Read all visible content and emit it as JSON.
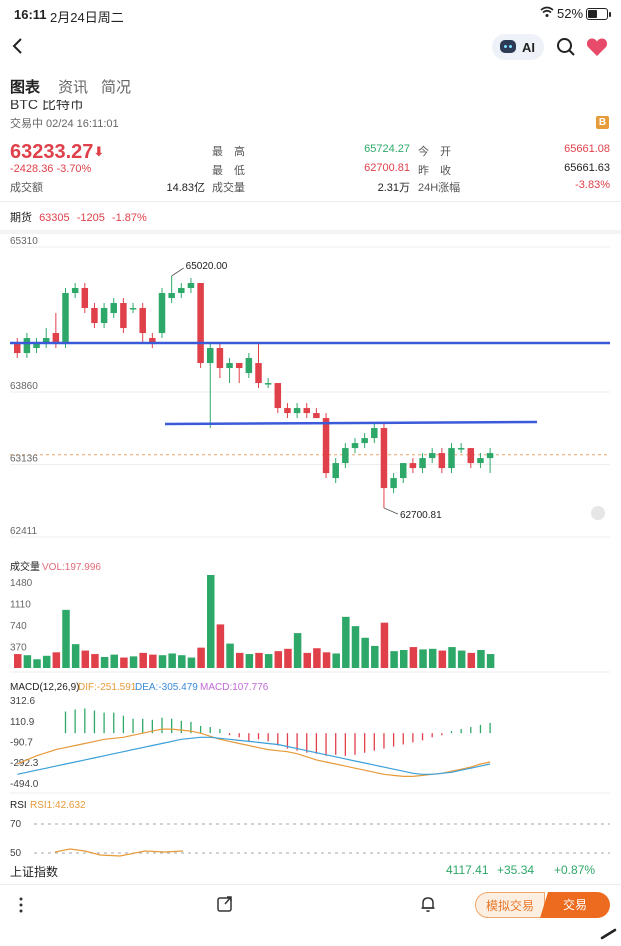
{
  "status_bar": {
    "time": "16:11",
    "date": "2月24日周二",
    "battery": "52%"
  },
  "header": {
    "ai_label": "AI"
  },
  "tabs": [
    {
      "label": "图表",
      "active": true
    },
    {
      "label": "资讯",
      "active": false
    },
    {
      "label": "简况",
      "active": false
    }
  ],
  "instrument": {
    "title": "BTC 比特币",
    "trade_status": "交易中 02/24 16:11:01",
    "price": "63233.27",
    "change": "-2428.36 -3.70%",
    "badge": "B"
  },
  "stats": {
    "high_label": "最　高",
    "high": "65724.27",
    "open_label": "今　开",
    "open": "65661.08",
    "low_label": "最　低",
    "low": "62700.81",
    "prev_label": "昨　收",
    "prev": "65661.63",
    "turnover_label": "成交额",
    "turnover": "14.83亿",
    "volume_label": "成交量",
    "volume": "2.31万",
    "change24_label": "24H涨幅",
    "change24": "-3.83%"
  },
  "futures": {
    "label": "期货",
    "price": "63305",
    "change": "-1205",
    "pct": "-1.87%"
  },
  "chart_data": {
    "type": "candlestick",
    "price_axis": {
      "ticks": [
        "65310",
        "63860",
        "63136",
        "62411"
      ]
    },
    "annotations": {
      "high": "65020.00",
      "low": "62700.81"
    },
    "candles": [
      {
        "o": 64350,
        "c": 64250,
        "h": 64400,
        "l": 64200
      },
      {
        "o": 64250,
        "c": 64400,
        "h": 64450,
        "l": 64200
      },
      {
        "o": 64300,
        "c": 64350,
        "h": 64400,
        "l": 64250
      },
      {
        "o": 64350,
        "c": 64400,
        "h": 64500,
        "l": 64300
      },
      {
        "o": 64450,
        "c": 64350,
        "h": 64650,
        "l": 64300
      },
      {
        "o": 64350,
        "c": 64850,
        "h": 64900,
        "l": 64300
      },
      {
        "o": 64850,
        "c": 64900,
        "h": 64950,
        "l": 64800
      },
      {
        "o": 64900,
        "c": 64700,
        "h": 64950,
        "l": 64650
      },
      {
        "o": 64700,
        "c": 64550,
        "h": 64750,
        "l": 64500
      },
      {
        "o": 64550,
        "c": 64700,
        "h": 64750,
        "l": 64500
      },
      {
        "o": 64650,
        "c": 64750,
        "h": 64800,
        "l": 64600
      },
      {
        "o": 64750,
        "c": 64500,
        "h": 64800,
        "l": 64450
      },
      {
        "o": 64700,
        "c": 64700,
        "h": 64750,
        "l": 64650
      },
      {
        "o": 64700,
        "c": 64450,
        "h": 64750,
        "l": 64350
      },
      {
        "o": 64400,
        "c": 64350,
        "h": 64450,
        "l": 64300
      },
      {
        "o": 64450,
        "c": 64850,
        "h": 64900,
        "l": 64400
      },
      {
        "o": 64800,
        "c": 64850,
        "h": 65020,
        "l": 64750
      },
      {
        "o": 64850,
        "c": 64900,
        "h": 64950,
        "l": 64800
      },
      {
        "o": 64900,
        "c": 64950,
        "h": 65000,
        "l": 64850
      },
      {
        "o": 64950,
        "c": 64150,
        "h": 64950,
        "l": 64100
      },
      {
        "o": 64150,
        "c": 64300,
        "h": 64350,
        "l": 63500
      },
      {
        "o": 64300,
        "c": 64100,
        "h": 64350,
        "l": 64000
      },
      {
        "o": 64100,
        "c": 64150,
        "h": 64200,
        "l": 63950
      },
      {
        "o": 64150,
        "c": 64100,
        "h": 64150,
        "l": 63950
      },
      {
        "o": 64050,
        "c": 64200,
        "h": 64250,
        "l": 64000
      },
      {
        "o": 64150,
        "c": 63950,
        "h": 64350,
        "l": 63900
      },
      {
        "o": 63950,
        "c": 63950,
        "h": 64000,
        "l": 63900
      },
      {
        "o": 63950,
        "c": 63700,
        "h": 63950,
        "l": 63650
      },
      {
        "o": 63700,
        "c": 63650,
        "h": 63750,
        "l": 63600
      },
      {
        "o": 63650,
        "c": 63700,
        "h": 63750,
        "l": 63600
      },
      {
        "o": 63700,
        "c": 63650,
        "h": 63750,
        "l": 63600
      },
      {
        "o": 63650,
        "c": 63600,
        "h": 63700,
        "l": 63600
      },
      {
        "o": 63600,
        "c": 63050,
        "h": 63650,
        "l": 63000
      },
      {
        "o": 63000,
        "c": 63150,
        "h": 63200,
        "l": 62950
      },
      {
        "o": 63150,
        "c": 63300,
        "h": 63350,
        "l": 63100
      },
      {
        "o": 63300,
        "c": 63350,
        "h": 63400,
        "l": 63250
      },
      {
        "o": 63350,
        "c": 63400,
        "h": 63450,
        "l": 63300
      },
      {
        "o": 63400,
        "c": 63500,
        "h": 63550,
        "l": 63350
      },
      {
        "o": 63500,
        "c": 62900,
        "h": 63550,
        "l": 62700
      },
      {
        "o": 62900,
        "c": 63000,
        "h": 63050,
        "l": 62850
      },
      {
        "o": 63000,
        "c": 63150,
        "h": 63150,
        "l": 62950
      },
      {
        "o": 63150,
        "c": 63100,
        "h": 63200,
        "l": 63050
      },
      {
        "o": 63100,
        "c": 63200,
        "h": 63250,
        "l": 63050
      },
      {
        "o": 63200,
        "c": 63250,
        "h": 63300,
        "l": 63150
      },
      {
        "o": 63250,
        "c": 63100,
        "h": 63300,
        "l": 63050
      },
      {
        "o": 63100,
        "c": 63300,
        "h": 63350,
        "l": 63050
      },
      {
        "o": 63300,
        "c": 63300,
        "h": 63350,
        "l": 63250
      },
      {
        "o": 63300,
        "c": 63150,
        "h": 63300,
        "l": 63100
      },
      {
        "o": 63150,
        "c": 63200,
        "h": 63250,
        "l": 63100
      },
      {
        "o": 63200,
        "c": 63250,
        "h": 63300,
        "l": 63050
      }
    ],
    "volume": {
      "label": "成交量",
      "vol_label": "VOL:197.996",
      "ticks": [
        "1480",
        "1110",
        "740",
        "370"
      ],
      "values": [
        240,
        220,
        150,
        210,
        270,
        1000,
        410,
        300,
        240,
        190,
        230,
        180,
        200,
        260,
        230,
        220,
        250,
        220,
        180,
        350,
        1600,
        750,
        420,
        260,
        240,
        260,
        240,
        290,
        330,
        600,
        260,
        340,
        270,
        250,
        880,
        720,
        520,
        380,
        780,
        290,
        310,
        360,
        320,
        330,
        300,
        360,
        300,
        260,
        310,
        240
      ]
    },
    "macd": {
      "label": "MACD(12,26,9)",
      "dif": "DIF:-251.591",
      "dea": "DEA:-305.479",
      "macd": "MACD:107.776",
      "ticks": [
        "312.6",
        "110.9",
        "-90.7",
        "-292.3",
        "-494.0"
      ],
      "histogram": [
        0,
        0,
        0,
        0,
        0,
        210,
        230,
        240,
        220,
        200,
        200,
        170,
        140,
        140,
        130,
        150,
        140,
        120,
        110,
        70,
        60,
        40,
        -20,
        -40,
        -80,
        -60,
        -80,
        -120,
        -150,
        -170,
        -190,
        -200,
        -220,
        -210,
        -220,
        -210,
        -190,
        -170,
        -150,
        -130,
        -110,
        -90,
        -70,
        -40,
        -20,
        20,
        40,
        60,
        80,
        100
      ],
      "dif_line": [
        -300,
        -260,
        -220,
        -190,
        -160,
        -140,
        -120,
        -100,
        -80,
        -60,
        -50,
        -40,
        -20,
        0,
        20,
        40,
        40,
        30,
        20,
        0,
        -30,
        -60,
        -80,
        -100,
        -120,
        -140,
        -160,
        -170,
        -180,
        -200,
        -230,
        -260,
        -280,
        -300,
        -320,
        -340,
        -360,
        -380,
        -400,
        -410,
        -420,
        -420,
        -410,
        -400,
        -390,
        -370,
        -350,
        -330,
        -300,
        -280
      ],
      "dea_line": [
        -400,
        -380,
        -360,
        -340,
        -320,
        -300,
        -280,
        -260,
        -240,
        -220,
        -200,
        -180,
        -160,
        -140,
        -120,
        -100,
        -80,
        -60,
        -50,
        -40,
        -40,
        -50,
        -60,
        -70,
        -80,
        -90,
        -100,
        -110,
        -130,
        -150,
        -170,
        -190,
        -210,
        -230,
        -250,
        -270,
        -290,
        -310,
        -330,
        -350,
        -370,
        -390,
        -400,
        -400,
        -390,
        -380,
        -360,
        -340,
        -320,
        -300
      ]
    },
    "rsi": {
      "label": "RSI",
      "rsi1": "RSI1:42.632",
      "ticks": [
        "70",
        "50"
      ]
    }
  },
  "index_bar": {
    "name": "上证指数",
    "value": "4117.41",
    "change": "+35.34",
    "pct": "+0.87%"
  },
  "toolbar": {
    "sim_label": "模拟交易",
    "trade_label": "交易"
  },
  "colors": {
    "up": "#e0404a",
    "down": "#2ea868",
    "line": "#3a5ad9",
    "accent": "#ec6b1f"
  }
}
